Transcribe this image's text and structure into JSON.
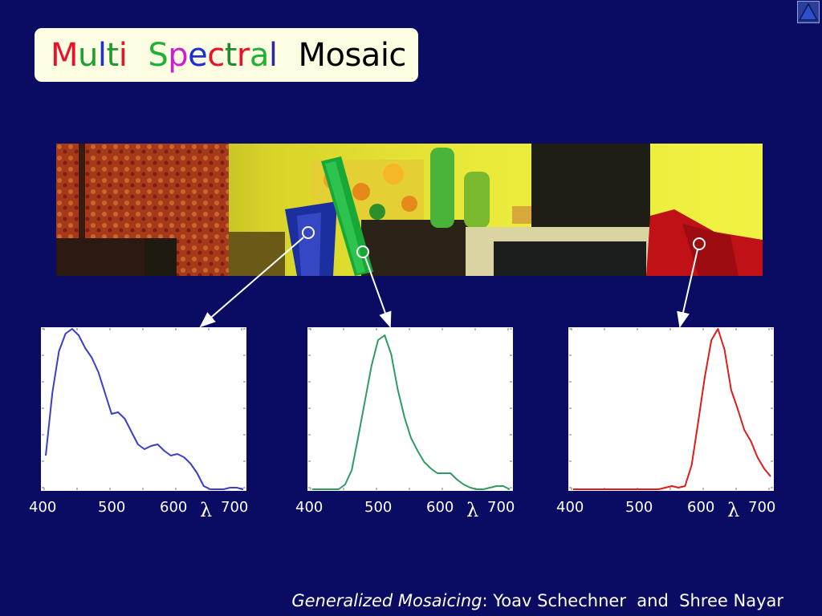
{
  "title": {
    "letters": [
      {
        "ch": "M",
        "color": "#e8122a"
      },
      {
        "ch": "u",
        "color": "#1fa032"
      },
      {
        "ch": "l",
        "color": "#1f2fd6"
      },
      {
        "ch": "t",
        "color": "#1f9a2e"
      },
      {
        "ch": "i",
        "color": "#e8122a"
      },
      {
        "ch": "S",
        "color": "#1fb035"
      },
      {
        "ch": "p",
        "color": "#cc1fcf"
      },
      {
        "ch": "e",
        "color": "#1f2fd6"
      },
      {
        "ch": "c",
        "color": "#e8122a"
      },
      {
        "ch": "t",
        "color": "#1f8a2e"
      },
      {
        "ch": "r",
        "color": "#e8122a"
      },
      {
        "ch": "a",
        "color": "#1fb035"
      },
      {
        "ch": "l",
        "color": "#2a2a9e"
      }
    ],
    "suffix": "Mosaic"
  },
  "nav": {
    "icon": "triangle-up-icon"
  },
  "scene": {
    "description_icon": "mosaic-photo"
  },
  "chart_data": [
    {
      "type": "line",
      "color": "#3a3fc8",
      "x_ticks": [
        "400",
        "500",
        "600",
        "700"
      ],
      "xlabel": "λ",
      "xlim": [
        400,
        700
      ],
      "ylim": [
        0,
        1
      ],
      "x": [
        400,
        410,
        420,
        430,
        440,
        450,
        460,
        470,
        480,
        490,
        500,
        510,
        520,
        530,
        540,
        550,
        560,
        570,
        580,
        590,
        600,
        610,
        620,
        630,
        640,
        650,
        660,
        670,
        680,
        690,
        700
      ],
      "y": [
        0.21,
        0.6,
        0.86,
        0.97,
        1.0,
        0.96,
        0.88,
        0.82,
        0.73,
        0.6,
        0.47,
        0.48,
        0.44,
        0.36,
        0.28,
        0.25,
        0.27,
        0.28,
        0.24,
        0.21,
        0.22,
        0.2,
        0.16,
        0.1,
        0.02,
        0.0,
        0.0,
        0.0,
        0.01,
        0.01,
        0.0
      ]
    },
    {
      "type": "line",
      "color": "#2f9b63",
      "x_ticks": [
        "400",
        "500",
        "600",
        "700"
      ],
      "xlabel": "λ",
      "xlim": [
        400,
        700
      ],
      "ylim": [
        0,
        1
      ],
      "x": [
        400,
        410,
        420,
        430,
        440,
        450,
        460,
        470,
        480,
        490,
        500,
        510,
        520,
        530,
        540,
        550,
        560,
        570,
        580,
        590,
        600,
        610,
        620,
        630,
        640,
        650,
        660,
        670,
        680,
        690,
        700
      ],
      "y": [
        0.0,
        0.0,
        0.0,
        0.0,
        0.0,
        0.03,
        0.12,
        0.33,
        0.55,
        0.77,
        0.93,
        0.96,
        0.84,
        0.62,
        0.45,
        0.32,
        0.24,
        0.17,
        0.13,
        0.1,
        0.1,
        0.1,
        0.06,
        0.03,
        0.01,
        0.0,
        0.0,
        0.01,
        0.02,
        0.02,
        0.0
      ]
    },
    {
      "type": "line",
      "color": "#e11a1a",
      "x_ticks": [
        "400",
        "500",
        "600",
        "700"
      ],
      "xlabel": "λ",
      "xlim": [
        400,
        700
      ],
      "ylim": [
        0,
        1
      ],
      "x": [
        400,
        410,
        420,
        430,
        440,
        450,
        460,
        470,
        480,
        490,
        500,
        510,
        520,
        530,
        540,
        550,
        560,
        570,
        580,
        590,
        600,
        610,
        620,
        630,
        640,
        650,
        660,
        670,
        680,
        690,
        700
      ],
      "y": [
        0.0,
        0.0,
        0.0,
        0.0,
        0.0,
        0.0,
        0.0,
        0.0,
        0.0,
        0.0,
        0.0,
        0.0,
        0.0,
        0.0,
        0.01,
        0.02,
        0.01,
        0.02,
        0.15,
        0.42,
        0.7,
        0.93,
        1.0,
        0.87,
        0.62,
        0.5,
        0.37,
        0.3,
        0.2,
        0.13,
        0.08
      ]
    }
  ],
  "footer": {
    "italic": "Generalized Mosaicing",
    "rest": ": Yoav Schechner  and  Shree Nayar"
  }
}
